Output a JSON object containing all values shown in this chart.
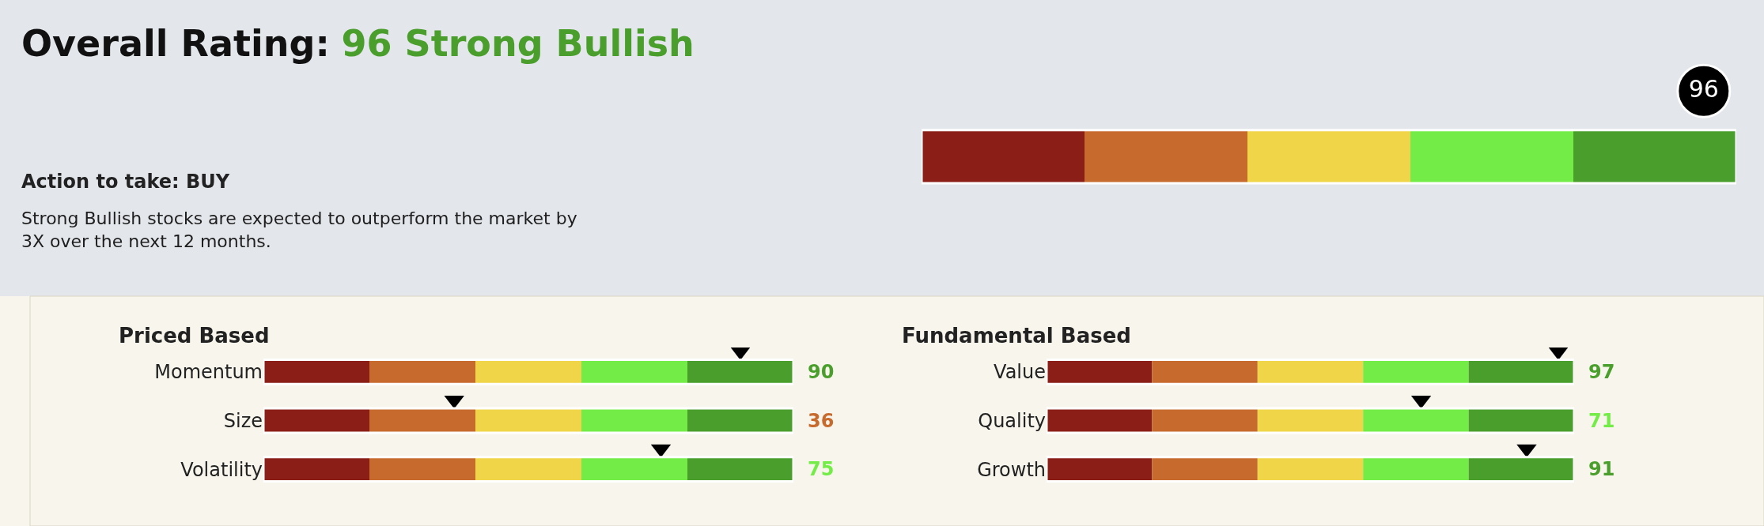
{
  "chart_data": [
    {
      "type": "other",
      "title": "Overall Rating:",
      "subtitle": "96 Strong Bullish",
      "color": "#4a9e2c",
      "categories": [
        null
      ],
      "values": [
        96
      ],
      "colors": [
        "#000000"
      ],
      "data_labels": true,
      "annotations": [
        "Action to take: BUY",
        "Strong Bullish stocks are expected to outperform the market by 3X over the next 12 months."
      ],
      "bands": [
        {
          "axis": "x",
          "color": "#8b1e16"
        },
        {
          "axis": "x",
          "color": "#c76a2e"
        },
        {
          "axis": "x",
          "color": "#efd547"
        },
        {
          "axis": "x",
          "color": "#74ec47"
        },
        {
          "axis": "x",
          "color": "#4a9e2c"
        }
      ]
    },
    {
      "type": "other",
      "title": "Priced Based",
      "categories": [
        "Momentum",
        "Size",
        "Volatility"
      ],
      "values": [
        90,
        36,
        75
      ],
      "data_labels": true,
      "bands": [
        {
          "axis": "x",
          "color": "#8b1e16"
        },
        {
          "axis": "x",
          "color": "#c76a2e"
        },
        {
          "axis": "x",
          "color": "#efd547"
        },
        {
          "axis": "x",
          "color": "#74ec47"
        },
        {
          "axis": "x",
          "color": "#4a9e2c"
        }
      ]
    },
    {
      "type": "other",
      "title": "Fundamental Based",
      "categories": [
        "Value",
        "Quality",
        "Growth"
      ],
      "values": [
        97,
        71,
        91
      ],
      "data_labels": true,
      "bands": [
        {
          "axis": "x",
          "color": "#8b1e16"
        },
        {
          "axis": "x",
          "color": "#c76a2e"
        },
        {
          "axis": "x",
          "color": "#efd547"
        },
        {
          "axis": "x",
          "color": "#74ec47"
        },
        {
          "axis": "x",
          "color": "#4a9e2c"
        }
      ]
    }
  ]
}
